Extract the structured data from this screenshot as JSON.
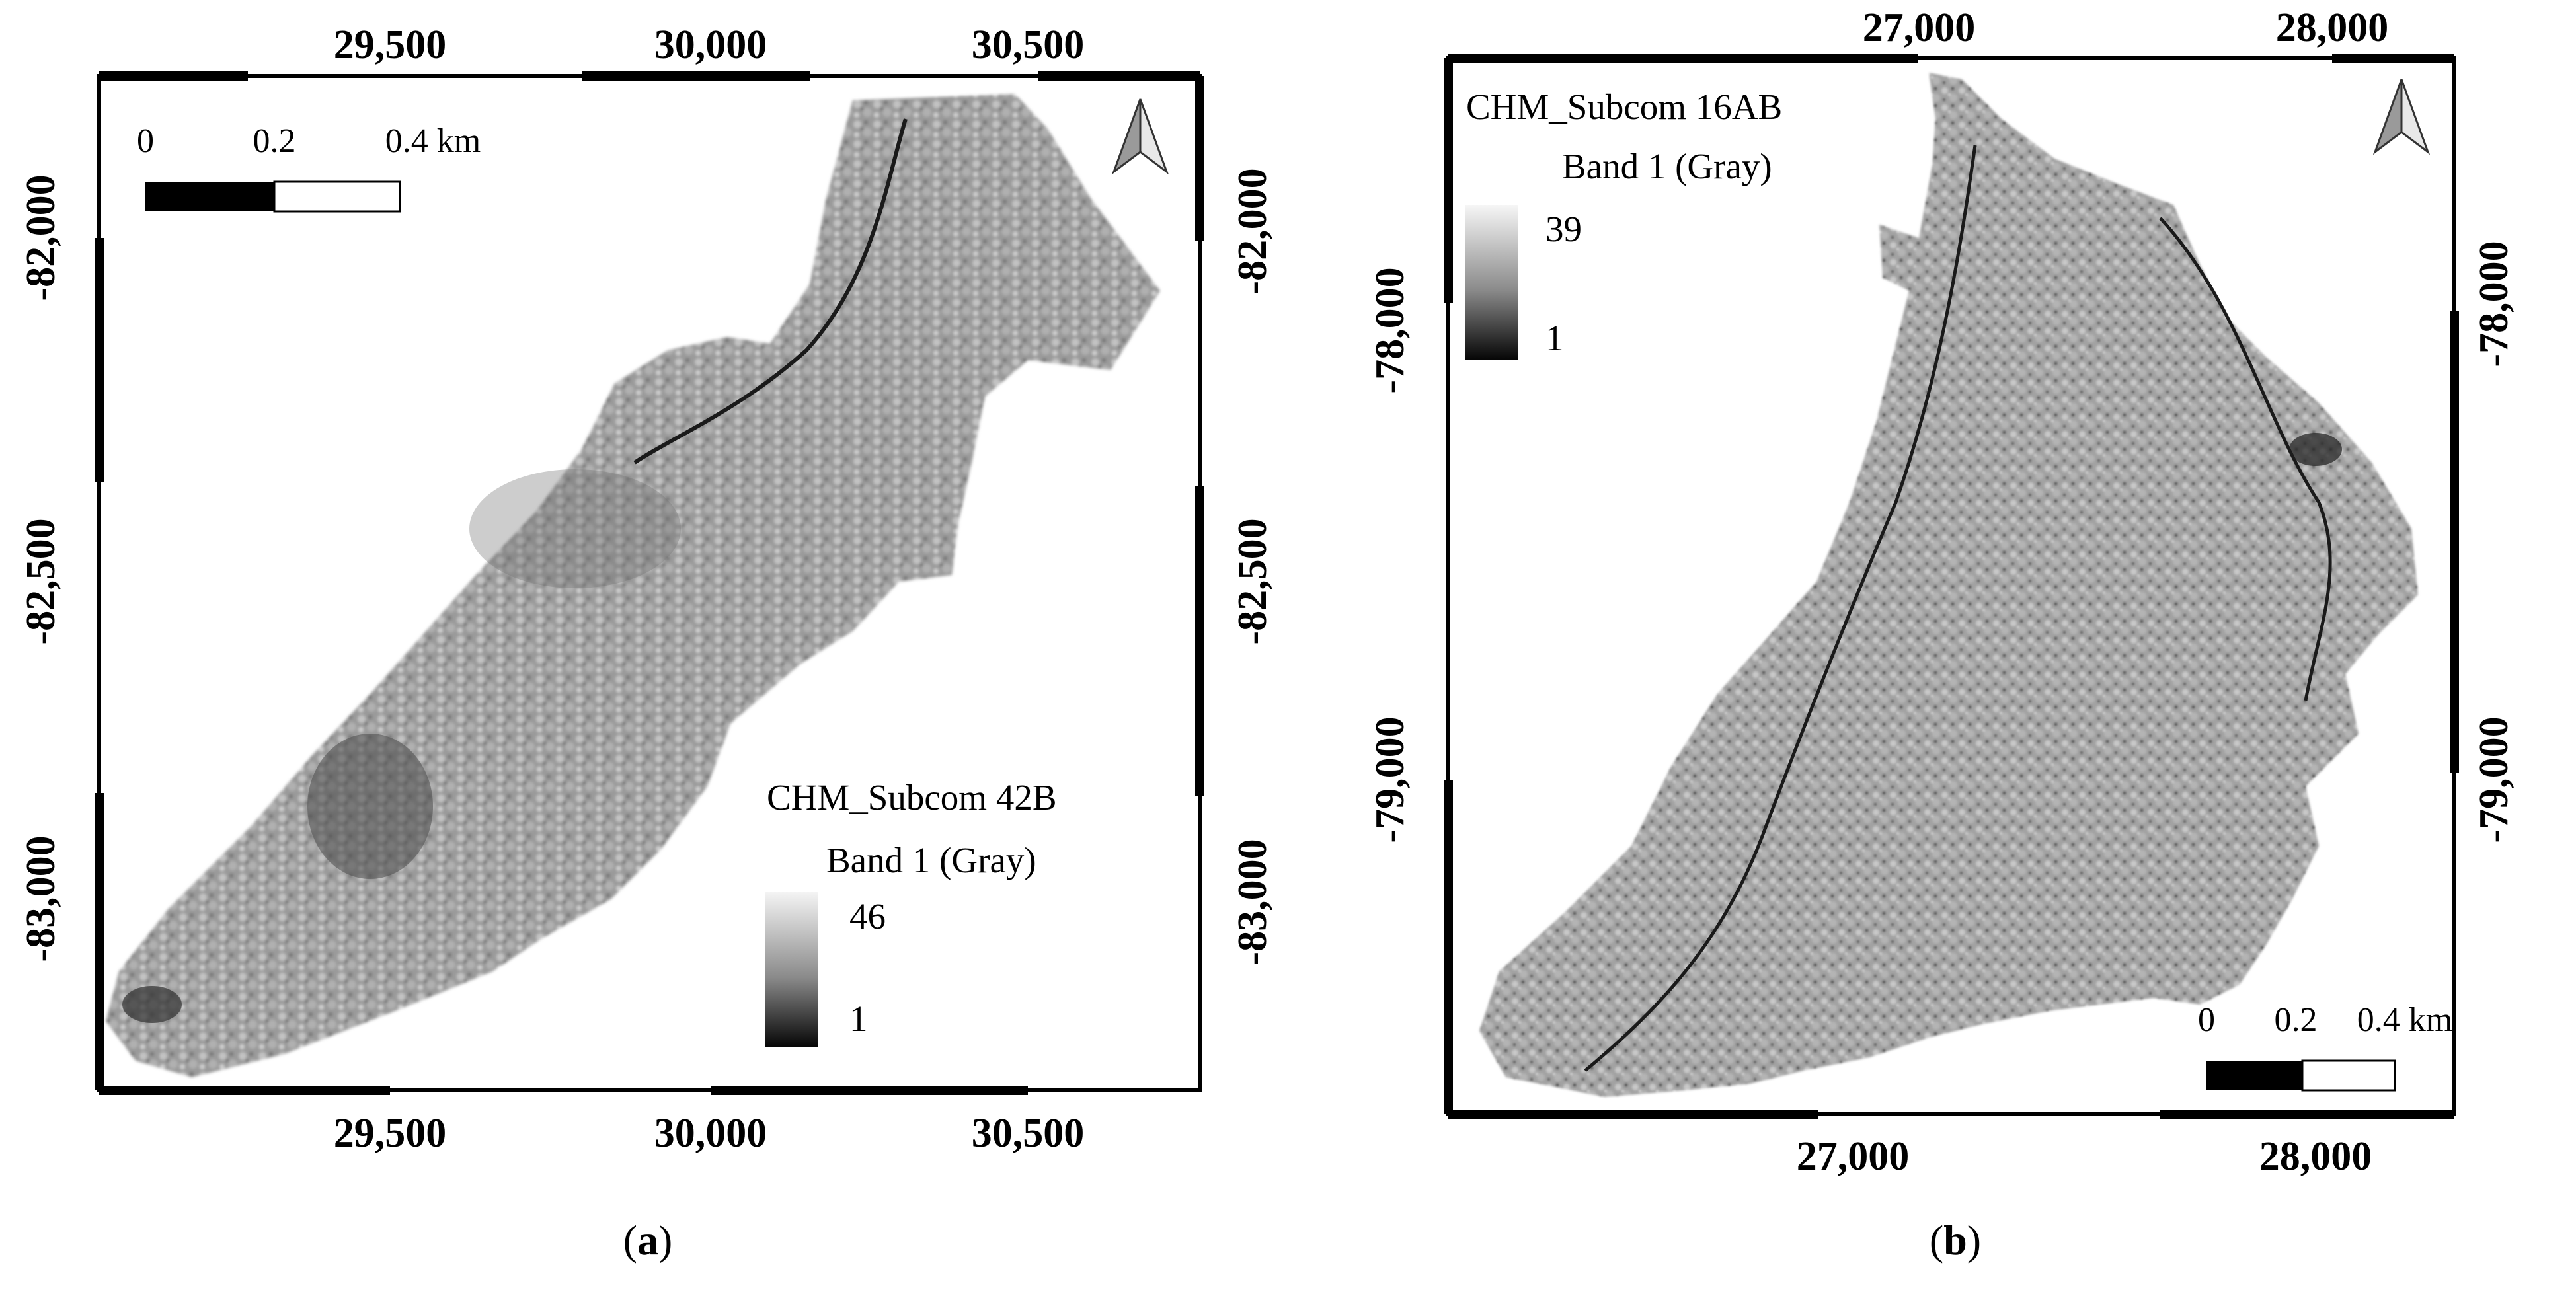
{
  "panel_a": {
    "caption_open": "(",
    "caption_letter": "a",
    "caption_close": ")",
    "x_ticks": [
      "29,500",
      "30,000",
      "30,500"
    ],
    "y_ticks": [
      "-82,000",
      "-82,500",
      "-83,000"
    ],
    "layer_name": "CHM_Subcom 42B",
    "band_label": "Band 1 (Gray)",
    "legend_max": "46",
    "legend_min": "1",
    "scale_labels": [
      "0",
      "0.2",
      "0.4 km"
    ],
    "north_arrow_icon": "north-arrow-icon"
  },
  "panel_b": {
    "caption_open": "(",
    "caption_letter": "b",
    "caption_close": ")",
    "x_ticks": [
      "27,000",
      "28,000"
    ],
    "y_ticks": [
      "-78,000",
      "-79,000"
    ],
    "layer_name": "CHM_Subcom 16AB",
    "band_label": "Band 1 (Gray)",
    "legend_max": "39",
    "legend_min": "1",
    "scale_labels": [
      "0",
      "0.2",
      "0.4 km"
    ],
    "north_arrow_icon": "north-arrow-icon"
  },
  "colors": {
    "frame": "#000000",
    "raster_dark": "#3a3a3a",
    "raster_mid": "#8c8c8c",
    "raster_light": "#c8c8c8"
  }
}
